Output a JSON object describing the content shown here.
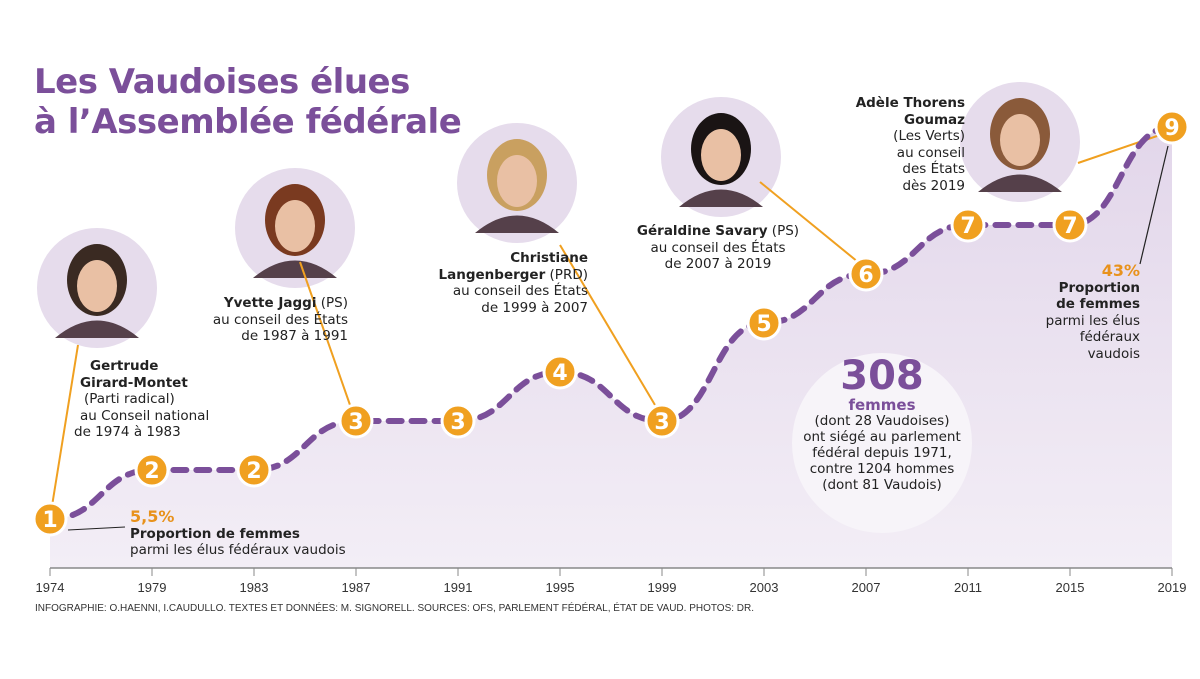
{
  "title_line1": "Les Vaudoises élues",
  "title_line2": "à l’Assemblée fédérale",
  "chart_data": {
    "type": "line",
    "x": [
      "1974",
      "1979",
      "1983",
      "1987",
      "1991",
      "1995",
      "1999",
      "2003",
      "2007",
      "2011",
      "2015",
      "2019"
    ],
    "values": [
      1,
      2,
      2,
      3,
      3,
      4,
      3,
      5,
      6,
      7,
      7,
      9
    ],
    "data_labels": [
      "1",
      "2",
      "2",
      "3",
      "3",
      "4",
      "3",
      "5",
      "6",
      "7",
      "7",
      "9"
    ],
    "ylim": [
      0,
      9.5
    ],
    "grid": false,
    "colors": {
      "line": "#7b4f9a",
      "area": "#ebe3f0",
      "marker": "#f0a020",
      "accent": "#e8921c"
    }
  },
  "annotations": {
    "gertrude": [
      "Gertrude",
      "Girard-Montet",
      "(Parti radical)",
      "au Conseil national",
      "de 1974 à 1983"
    ],
    "yvette": {
      "name": "Yvette Jaggi",
      "party": " (PS)",
      "l2": "au conseil des États",
      "l3": "de 1987 à 1991"
    },
    "christiane": {
      "l1": "Christiane",
      "l2": "Langenberger",
      "party": " (PRD)",
      "l3": "au conseil des États",
      "l4": "de 1999 à 2007"
    },
    "geraldine": {
      "name": "Géraldine Savary",
      "party": " (PS)",
      "l2": "au conseil des États",
      "l3": "de 2007 à 2019"
    },
    "adele": [
      "Adèle Thorens",
      "Goumaz",
      "(Les Verts)",
      "au conseil",
      "des États",
      "dès 2019"
    ],
    "start_pct": {
      "value": "5,5%",
      "l1": "Proportion de femmes",
      "l2": "parmi les élus fédéraux vaudois"
    },
    "end_pct": {
      "value": "43%",
      "l1": "Proportion",
      "l2": "de femmes",
      "l3": "parmi les élus",
      "l4": "fédéraux",
      "l5": "vaudois"
    }
  },
  "callout": {
    "number": "308",
    "unit": "femmes",
    "lines": [
      "(dont 28 Vaudoises)",
      "ont siégé au parlement",
      "fédéral depuis 1971,",
      "contre 1204 hommes",
      "(dont 81 Vaudois)"
    ]
  },
  "credits": "INFOGRAPHIE: O.HAENNI, I.CAUDULLO. TEXTES ET DONNÉES: M. SIGNORELL. SOURCES: OFS, PARLEMENT FÉDÉRAL, ÉTAT DE VAUD. PHOTOS: DR."
}
